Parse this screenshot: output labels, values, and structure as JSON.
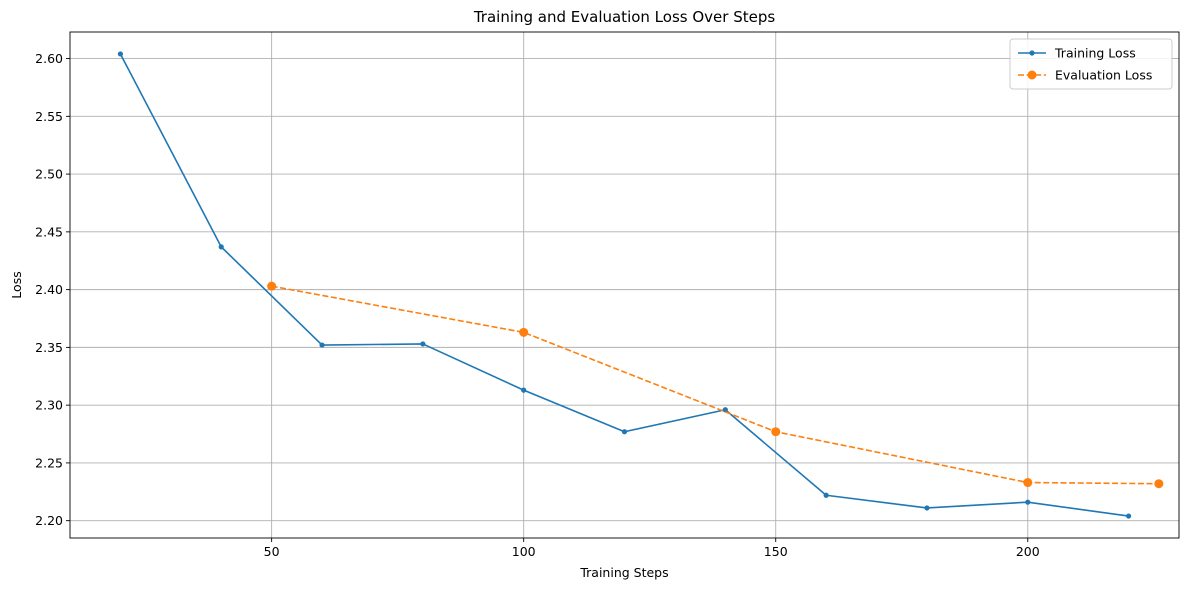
{
  "chart_data": {
    "type": "line",
    "title": "Training and Evaluation Loss Over Steps",
    "xlabel": "Training Steps",
    "ylabel": "Loss",
    "xlim": [
      10,
      230
    ],
    "ylim": [
      2.185,
      2.623
    ],
    "xticks": [
      50,
      100,
      150,
      200
    ],
    "xtick_labels": [
      "50",
      "100",
      "150",
      "200"
    ],
    "yticks": [
      2.2,
      2.25,
      2.3,
      2.35,
      2.4,
      2.45,
      2.5,
      2.55,
      2.6
    ],
    "ytick_labels": [
      "2.20",
      "2.25",
      "2.30",
      "2.35",
      "2.40",
      "2.45",
      "2.50",
      "2.55",
      "2.60"
    ],
    "grid": true,
    "legend_position": "top-right",
    "series": [
      {
        "name": "Training Loss",
        "color": "#1f77b4",
        "line_style": "solid",
        "marker": "small-circle",
        "x": [
          20,
          40,
          60,
          80,
          100,
          120,
          140,
          160,
          180,
          200,
          220
        ],
        "y": [
          2.604,
          2.437,
          2.352,
          2.353,
          2.313,
          2.277,
          2.296,
          2.222,
          2.211,
          2.216,
          2.204
        ]
      },
      {
        "name": "Evaluation Loss",
        "color": "#ff7f0e",
        "line_style": "dashed",
        "marker": "large-circle",
        "x": [
          50,
          100,
          150,
          200,
          226
        ],
        "y": [
          2.403,
          2.363,
          2.277,
          2.233,
          2.232
        ]
      }
    ]
  }
}
